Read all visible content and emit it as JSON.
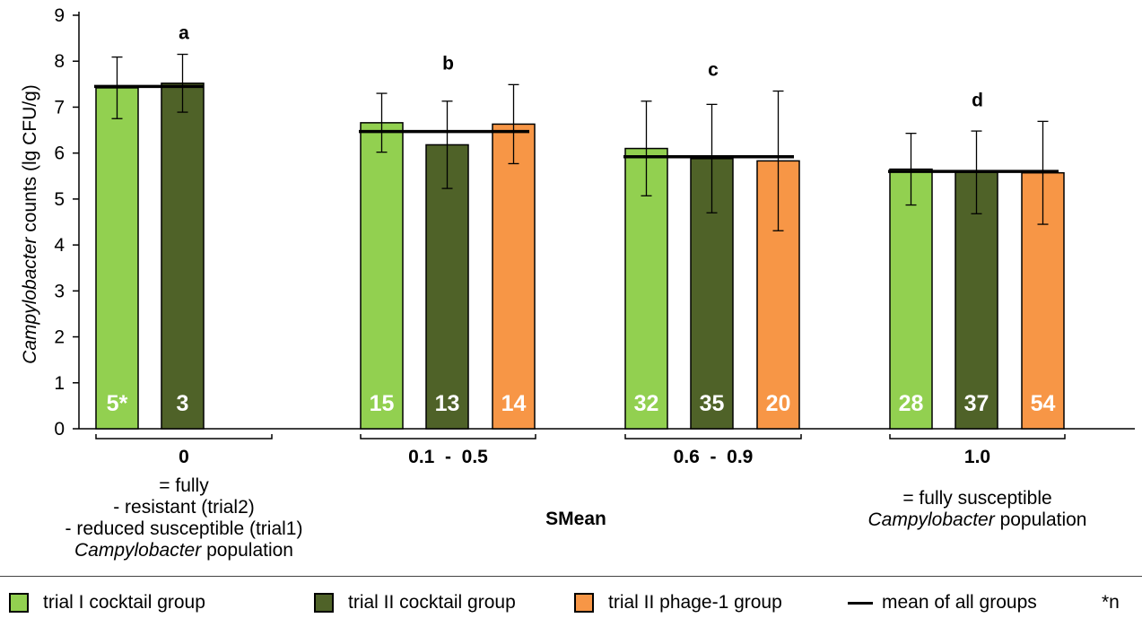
{
  "chart_data": {
    "type": "bar",
    "title": "",
    "ylabel_italic": "Campylobacter",
    "ylabel_rest": " counts (lg CFU/g)",
    "xlabel": "SMean",
    "ylim": [
      0,
      9
    ],
    "yticks": [
      "0",
      "1",
      "2",
      "3",
      "4",
      "5",
      "6",
      "7",
      "8",
      "9"
    ],
    "grid": false,
    "groups": [
      {
        "name": "0",
        "letter": "a",
        "mean": 7.45,
        "bars": [
          {
            "series": "trial I cocktail group",
            "value": 7.42,
            "err": 0.67,
            "n": "5*"
          },
          {
            "series": "trial II cocktail group",
            "value": 7.52,
            "err": 0.63,
            "n": "3"
          }
        ],
        "caption": [
          "= fully",
          "- resistant (trial2)",
          "- reduced susceptible (trial1)",
          "Campylobacter population"
        ]
      },
      {
        "name": "0.1  -  0.5",
        "letter": "b",
        "mean": 6.47,
        "bars": [
          {
            "series": "trial I cocktail group",
            "value": 6.66,
            "err": 0.64,
            "n": "15"
          },
          {
            "series": "trial II cocktail group",
            "value": 6.18,
            "err": 0.95,
            "n": "13"
          },
          {
            "series": "trial II phage-1 group",
            "value": 6.63,
            "err": 0.86,
            "n": "14"
          }
        ],
        "caption": []
      },
      {
        "name": "0.6  -  0.9",
        "letter": "c",
        "mean": 5.92,
        "bars": [
          {
            "series": "trial I cocktail group",
            "value": 6.1,
            "err": 1.03,
            "n": "32"
          },
          {
            "series": "trial II cocktail group",
            "value": 5.88,
            "err": 1.18,
            "n": "35"
          },
          {
            "series": "trial II phage-1 group",
            "value": 5.83,
            "err": 1.52,
            "n": "20"
          }
        ],
        "caption": []
      },
      {
        "name": "1.0",
        "letter": "d",
        "mean": 5.6,
        "bars": [
          {
            "series": "trial I cocktail group",
            "value": 5.65,
            "err": 0.78,
            "n": "28"
          },
          {
            "series": "trial II cocktail group",
            "value": 5.58,
            "err": 0.9,
            "n": "37"
          },
          {
            "series": "trial II phage-1 group",
            "value": 5.57,
            "err": 1.12,
            "n": "54"
          }
        ],
        "caption": [
          "= fully susceptible",
          "Campylobacter population"
        ]
      }
    ],
    "series": [
      {
        "name": "trial I cocktail group",
        "color": "#92d050"
      },
      {
        "name": "trial II cocktail group",
        "color": "#4f6228"
      },
      {
        "name": "trial II phage-1 group",
        "color": "#f79646"
      }
    ],
    "legend": {
      "position": "bottom",
      "mean_label": "mean of all groups",
      "n_label": "*n"
    }
  }
}
